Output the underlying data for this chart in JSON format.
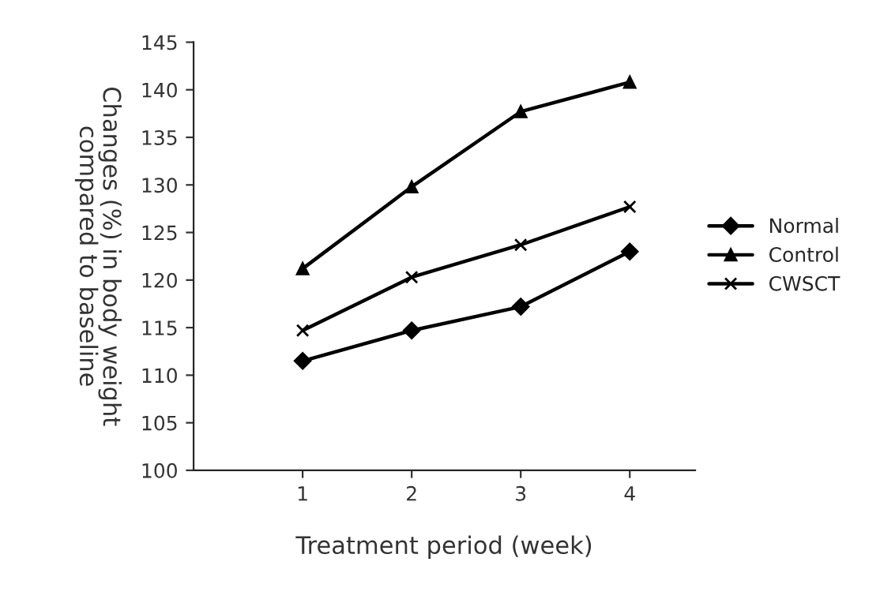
{
  "chart_data": {
    "type": "line",
    "xlabel": "Treatment period (week)",
    "ylabel": "Changes (%) in body weight\ncompared to baseline",
    "x": [
      1,
      2,
      3,
      4
    ],
    "xlim": [
      0,
      4.6
    ],
    "xticks": [
      1,
      2,
      3,
      4
    ],
    "ylim": [
      100,
      145
    ],
    "yticks": [
      100,
      105,
      110,
      115,
      120,
      125,
      130,
      135,
      140,
      145
    ],
    "grid": false,
    "legend": "right",
    "line_style": "solid",
    "series": [
      {
        "name": "Normal",
        "color": "#000000",
        "marker": "diamond",
        "values": [
          111.5,
          114.7,
          117.2,
          123.0
        ]
      },
      {
        "name": "Control",
        "color": "#000000",
        "marker": "triangle",
        "values": [
          121.2,
          129.8,
          137.7,
          140.8
        ]
      },
      {
        "name": "CWSCT",
        "color": "#000000",
        "marker": "cross",
        "values": [
          114.7,
          120.3,
          123.7,
          127.7
        ]
      }
    ]
  }
}
